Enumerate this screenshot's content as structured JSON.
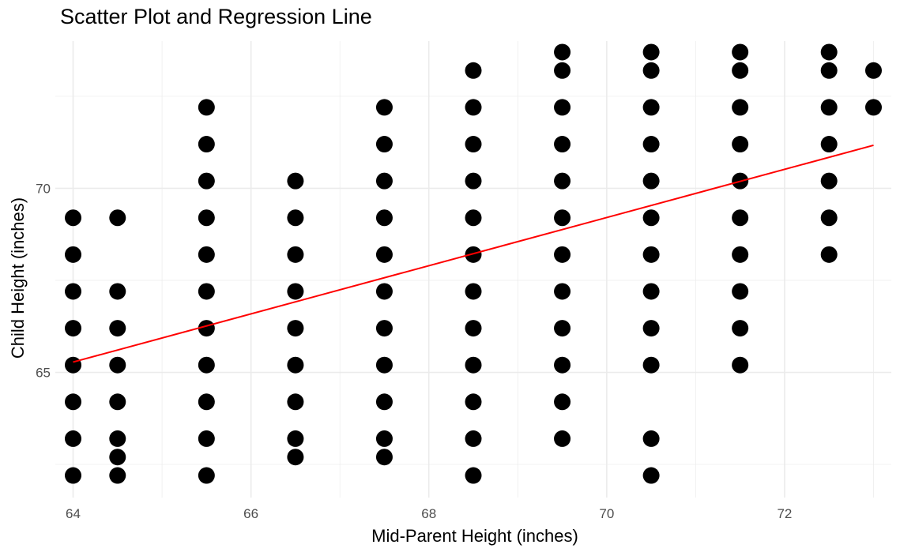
{
  "chart_data": {
    "type": "scatter",
    "title": "Scatter Plot and Regression Line",
    "xlabel": "Mid-Parent Height (inches)",
    "ylabel": "Child Height (inches)",
    "xlim": [
      63.8,
      73.2
    ],
    "ylim": [
      61.6,
      74.0
    ],
    "x_ticks": [
      64,
      66,
      68,
      70,
      72
    ],
    "y_ticks": [
      65,
      70
    ],
    "x_tick_labels": [
      "64",
      "66",
      "68",
      "70",
      "72"
    ],
    "y_tick_labels": [
      "65",
      "70"
    ],
    "grid": true,
    "legend": "none",
    "point_color": "#000000",
    "line_color": "#ff0000",
    "grid_color": "#ebebeb",
    "points": [
      [
        64,
        62.2
      ],
      [
        64,
        63.2
      ],
      [
        64,
        64.2
      ],
      [
        64,
        65.2
      ],
      [
        64,
        66.2
      ],
      [
        64,
        67.2
      ],
      [
        64,
        68.2
      ],
      [
        64,
        69.2
      ],
      [
        64.5,
        62.2
      ],
      [
        64.5,
        62.7
      ],
      [
        64.5,
        63.2
      ],
      [
        64.5,
        64.2
      ],
      [
        64.5,
        65.2
      ],
      [
        64.5,
        66.2
      ],
      [
        64.5,
        67.2
      ],
      [
        64.5,
        69.2
      ],
      [
        65.5,
        62.2
      ],
      [
        65.5,
        63.2
      ],
      [
        65.5,
        64.2
      ],
      [
        65.5,
        65.2
      ],
      [
        65.5,
        66.2
      ],
      [
        65.5,
        67.2
      ],
      [
        65.5,
        68.2
      ],
      [
        65.5,
        69.2
      ],
      [
        65.5,
        70.2
      ],
      [
        65.5,
        71.2
      ],
      [
        65.5,
        72.2
      ],
      [
        66.5,
        62.7
      ],
      [
        66.5,
        63.2
      ],
      [
        66.5,
        64.2
      ],
      [
        66.5,
        65.2
      ],
      [
        66.5,
        66.2
      ],
      [
        66.5,
        67.2
      ],
      [
        66.5,
        68.2
      ],
      [
        66.5,
        69.2
      ],
      [
        66.5,
        70.2
      ],
      [
        67.5,
        62.7
      ],
      [
        67.5,
        63.2
      ],
      [
        67.5,
        64.2
      ],
      [
        67.5,
        65.2
      ],
      [
        67.5,
        66.2
      ],
      [
        67.5,
        67.2
      ],
      [
        67.5,
        68.2
      ],
      [
        67.5,
        69.2
      ],
      [
        67.5,
        70.2
      ],
      [
        67.5,
        71.2
      ],
      [
        67.5,
        72.2
      ],
      [
        68.5,
        62.2
      ],
      [
        68.5,
        63.2
      ],
      [
        68.5,
        64.2
      ],
      [
        68.5,
        65.2
      ],
      [
        68.5,
        66.2
      ],
      [
        68.5,
        67.2
      ],
      [
        68.5,
        68.2
      ],
      [
        68.5,
        69.2
      ],
      [
        68.5,
        70.2
      ],
      [
        68.5,
        71.2
      ],
      [
        68.5,
        72.2
      ],
      [
        68.5,
        73.2
      ],
      [
        69.5,
        63.2
      ],
      [
        69.5,
        64.2
      ],
      [
        69.5,
        65.2
      ],
      [
        69.5,
        66.2
      ],
      [
        69.5,
        67.2
      ],
      [
        69.5,
        68.2
      ],
      [
        69.5,
        69.2
      ],
      [
        69.5,
        70.2
      ],
      [
        69.5,
        71.2
      ],
      [
        69.5,
        72.2
      ],
      [
        69.5,
        73.2
      ],
      [
        69.5,
        73.7
      ],
      [
        70.5,
        62.2
      ],
      [
        70.5,
        63.2
      ],
      [
        70.5,
        65.2
      ],
      [
        70.5,
        66.2
      ],
      [
        70.5,
        67.2
      ],
      [
        70.5,
        68.2
      ],
      [
        70.5,
        69.2
      ],
      [
        70.5,
        70.2
      ],
      [
        70.5,
        71.2
      ],
      [
        70.5,
        72.2
      ],
      [
        70.5,
        73.2
      ],
      [
        70.5,
        73.7
      ],
      [
        71.5,
        65.2
      ],
      [
        71.5,
        66.2
      ],
      [
        71.5,
        67.2
      ],
      [
        71.5,
        68.2
      ],
      [
        71.5,
        69.2
      ],
      [
        71.5,
        70.2
      ],
      [
        71.5,
        71.2
      ],
      [
        71.5,
        72.2
      ],
      [
        71.5,
        73.2
      ],
      [
        71.5,
        73.7
      ],
      [
        72.5,
        68.2
      ],
      [
        72.5,
        69.2
      ],
      [
        72.5,
        70.2
      ],
      [
        72.5,
        71.2
      ],
      [
        72.5,
        72.2
      ],
      [
        72.5,
        73.2
      ],
      [
        72.5,
        73.7
      ],
      [
        73,
        72.2
      ],
      [
        73,
        73.2
      ]
    ],
    "regression_line": {
      "x": [
        64,
        73
      ],
      "y": [
        65.28,
        71.17
      ]
    }
  }
}
